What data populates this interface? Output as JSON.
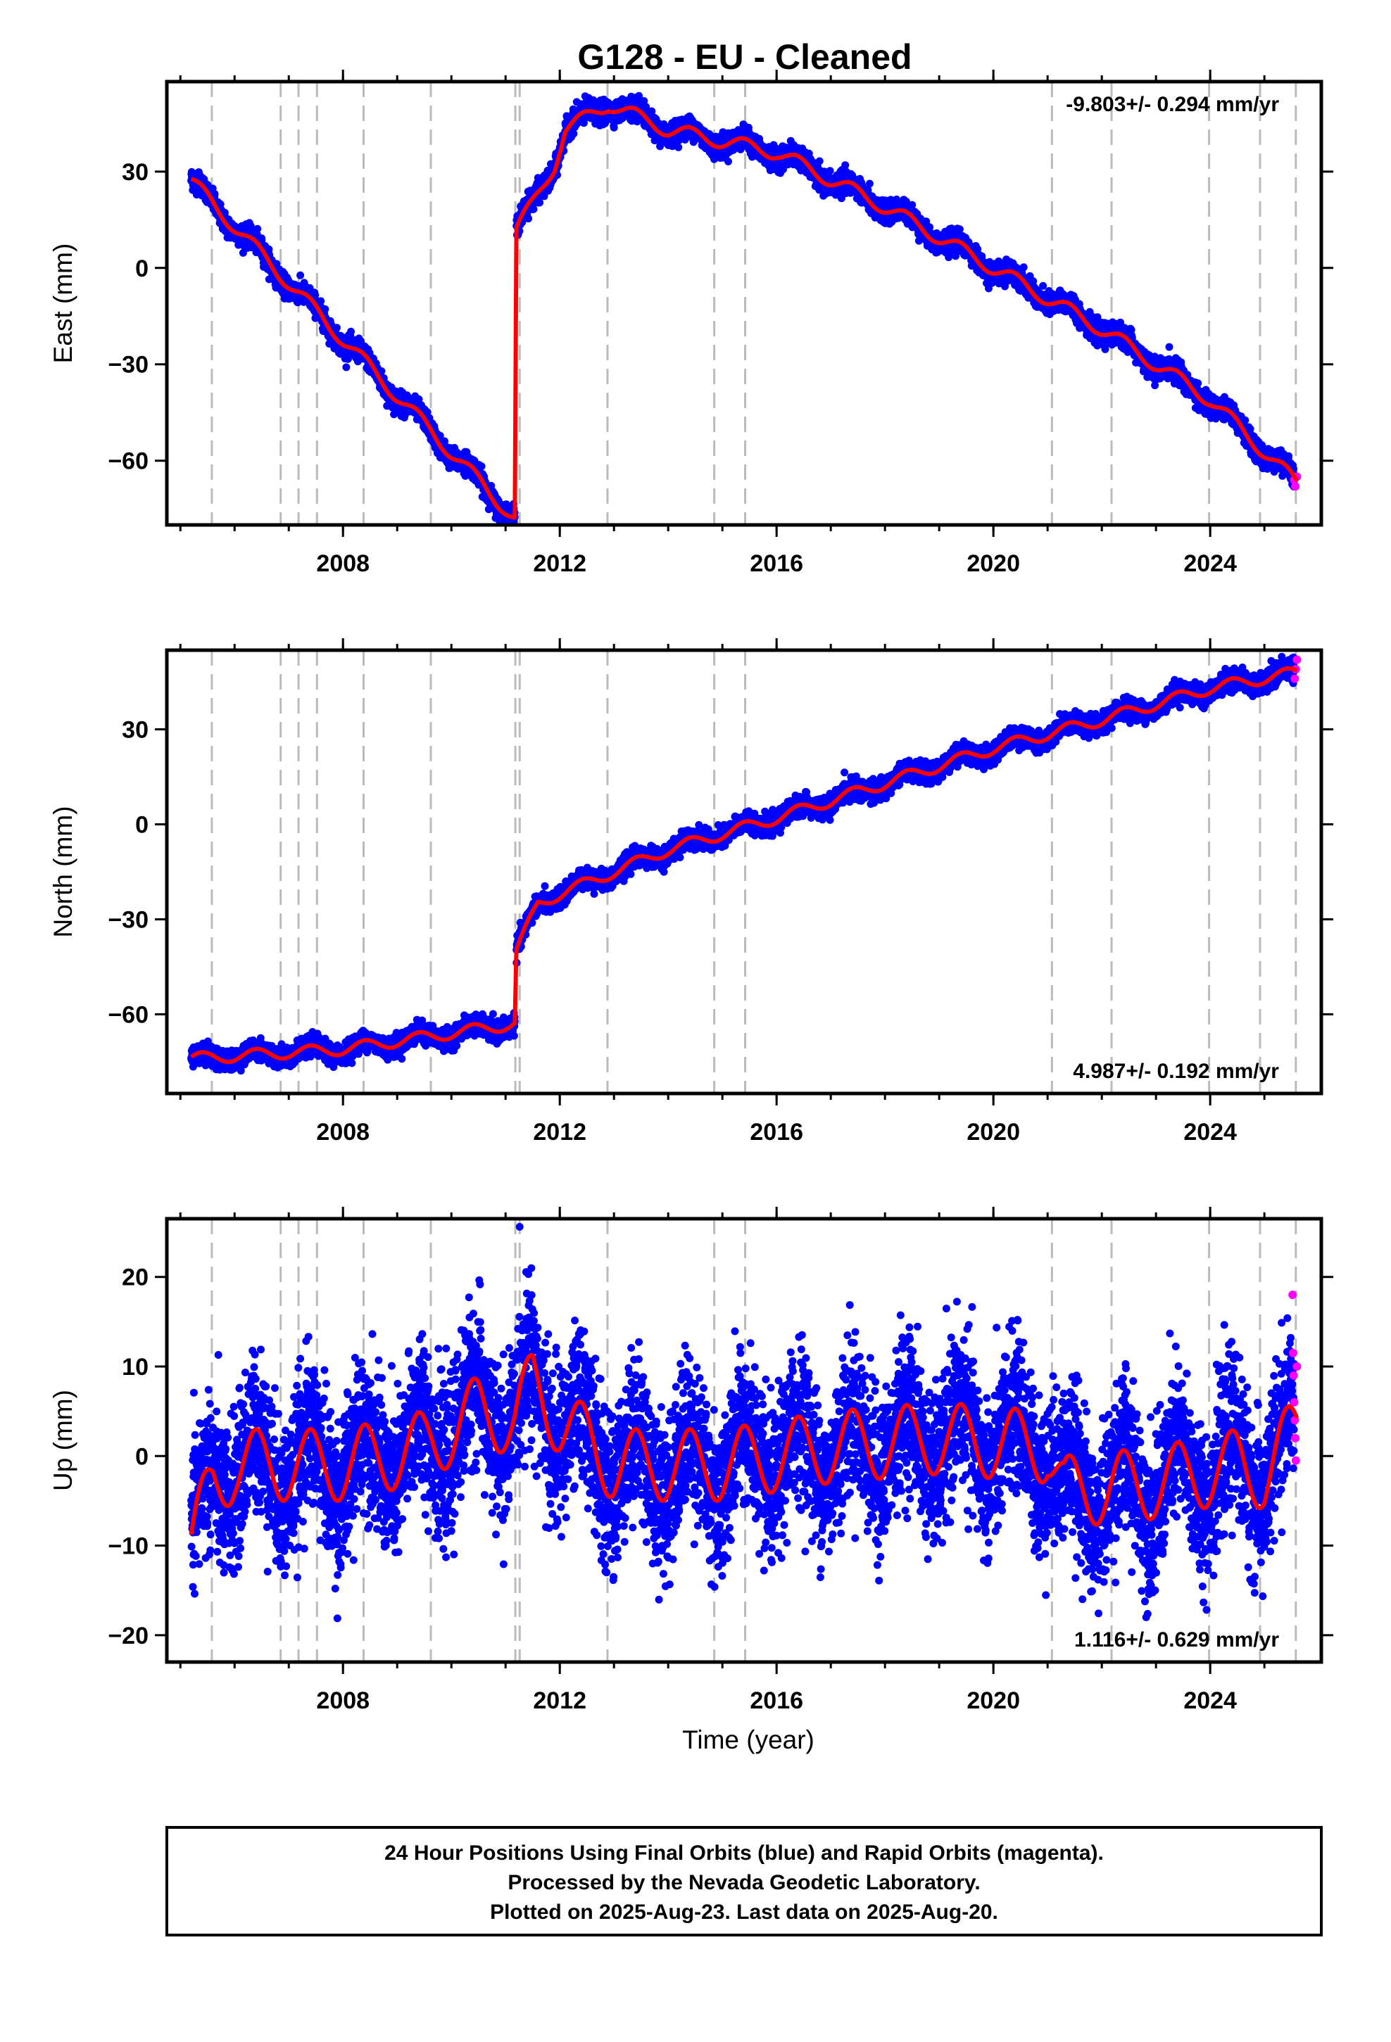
{
  "title": "G128  - EU - Cleaned",
  "xlabel": "Time (year)",
  "footer": {
    "lines": [
      "24 Hour Positions Using Final Orbits (blue) and Rapid Orbits (magenta).",
      "Processed by the Nevada Geodetic Laboratory.",
      "Plotted on 2025-Aug-23. Last data on 2025-Aug-20."
    ]
  },
  "colors": {
    "final_orbits": "#0000ff",
    "rapid_orbits": "#ff00ff",
    "model": "#ff0000",
    "event_lines": "#bbbbbb",
    "frame": "#000000"
  },
  "chart_data": [
    {
      "type": "scatter",
      "ylabel": "East (mm)",
      "rate": "-9.803+/- 0.294 mm/yr",
      "rate_position": "top-right",
      "xlim": [
        2004.75,
        2026.05
      ],
      "ylim": [
        -80,
        58
      ],
      "xticks": [
        2008,
        2012,
        2016,
        2020,
        2024
      ],
      "yticks": [
        -60,
        -30,
        0,
        30
      ],
      "ytick_labels": [
        "−60",
        "−30",
        "0",
        "30"
      ],
      "event_lines": [
        2005.58,
        2006.85,
        2007.18,
        2007.52,
        2008.38,
        2009.62,
        2011.18,
        2011.26,
        2012.88,
        2014.85,
        2015.42,
        2021.08,
        2022.18,
        2023.98,
        2024.92,
        2025.58
      ],
      "model_keyframes": [
        [
          2005.2,
          27
        ],
        [
          2011.17,
          -78
        ],
        [
          2011.2,
          12
        ],
        [
          2011.5,
          20
        ],
        [
          2011.9,
          32
        ],
        [
          2012.1,
          43
        ],
        [
          2012.9,
          51
        ],
        [
          2014.0,
          43
        ],
        [
          2016.0,
          36
        ],
        [
          2018.0,
          19
        ],
        [
          2020.0,
          0
        ],
        [
          2022.0,
          -19
        ],
        [
          2024.0,
          -41
        ],
        [
          2025.6,
          -67
        ]
      ],
      "seasonal_amplitude": 2.2,
      "noise": 1.6,
      "rapid_points": [
        [
          2025.55,
          -66
        ],
        [
          2025.57,
          -68
        ],
        [
          2025.6,
          -65
        ]
      ]
    },
    {
      "type": "scatter",
      "ylabel": "North (mm)",
      "rate": "4.987+/- 0.192 mm/yr",
      "rate_position": "bottom-right",
      "xlim": [
        2004.75,
        2026.05
      ],
      "ylim": [
        -85,
        55
      ],
      "xticks": [
        2008,
        2012,
        2016,
        2020,
        2024
      ],
      "yticks": [
        -60,
        -30,
        0,
        30
      ],
      "ytick_labels": [
        "−60",
        "−30",
        "0",
        "30"
      ],
      "event_lines": [
        2005.58,
        2006.85,
        2007.18,
        2007.52,
        2008.38,
        2009.62,
        2011.18,
        2011.26,
        2012.88,
        2014.85,
        2015.42,
        2021.08,
        2022.18,
        2023.98,
        2024.92,
        2025.58
      ],
      "model_keyframes": [
        [
          2005.2,
          -74
        ],
        [
          2008.0,
          -71
        ],
        [
          2011.17,
          -63
        ],
        [
          2011.2,
          -40
        ],
        [
          2011.6,
          -25
        ],
        [
          2012.0,
          -22
        ],
        [
          2014.0,
          -8
        ],
        [
          2016.0,
          2
        ],
        [
          2018.0,
          13
        ],
        [
          2020.0,
          24
        ],
        [
          2022.0,
          33
        ],
        [
          2024.0,
          43
        ],
        [
          2025.6,
          48
        ]
      ],
      "seasonal_amplitude": 1.8,
      "noise": 1.5,
      "rapid_points": [
        [
          2025.56,
          46
        ],
        [
          2025.58,
          49
        ],
        [
          2025.6,
          52
        ]
      ]
    },
    {
      "type": "scatter",
      "ylabel": "Up (mm)",
      "rate": "1.116+/- 0.629 mm/yr",
      "rate_position": "bottom-right",
      "xlim": [
        2004.75,
        2026.05
      ],
      "ylim": [
        -23,
        26.5
      ],
      "xticks": [
        2008,
        2012,
        2016,
        2020,
        2024
      ],
      "yticks": [
        -20,
        -10,
        0,
        10,
        20
      ],
      "ytick_labels": [
        "−20",
        "−10",
        "0",
        "10",
        "20"
      ],
      "event_lines": [
        2005.58,
        2006.85,
        2007.18,
        2007.52,
        2008.38,
        2009.62,
        2011.18,
        2011.26,
        2012.88,
        2014.85,
        2015.42,
        2021.08,
        2022.18,
        2023.98,
        2024.92,
        2025.58
      ],
      "model_keyframes": [
        [
          2005.2,
          -10
        ],
        [
          2005.6,
          -3
        ],
        [
          2006.0,
          -1
        ],
        [
          2008.0,
          -1
        ],
        [
          2009.5,
          1
        ],
        [
          2010.5,
          5
        ],
        [
          2011.17,
          4
        ],
        [
          2011.5,
          8
        ],
        [
          2012.0,
          4
        ],
        [
          2013.0,
          -1
        ],
        [
          2015.0,
          -1
        ],
        [
          2017.0,
          1
        ],
        [
          2019.0,
          2
        ],
        [
          2021.0,
          1
        ],
        [
          2021.3,
          -4
        ],
        [
          2023.0,
          -3
        ],
        [
          2024.5,
          -1
        ],
        [
          2025.0,
          -2
        ],
        [
          2025.6,
          3
        ]
      ],
      "seasonal_amplitude": 4.0,
      "noise": 4.2,
      "rapid_points": [
        [
          2025.52,
          18
        ],
        [
          2025.53,
          11.5
        ],
        [
          2025.54,
          9
        ],
        [
          2025.55,
          6
        ],
        [
          2025.56,
          4
        ],
        [
          2025.57,
          2
        ],
        [
          2025.58,
          -0.5
        ],
        [
          2025.6,
          10
        ]
      ]
    }
  ]
}
